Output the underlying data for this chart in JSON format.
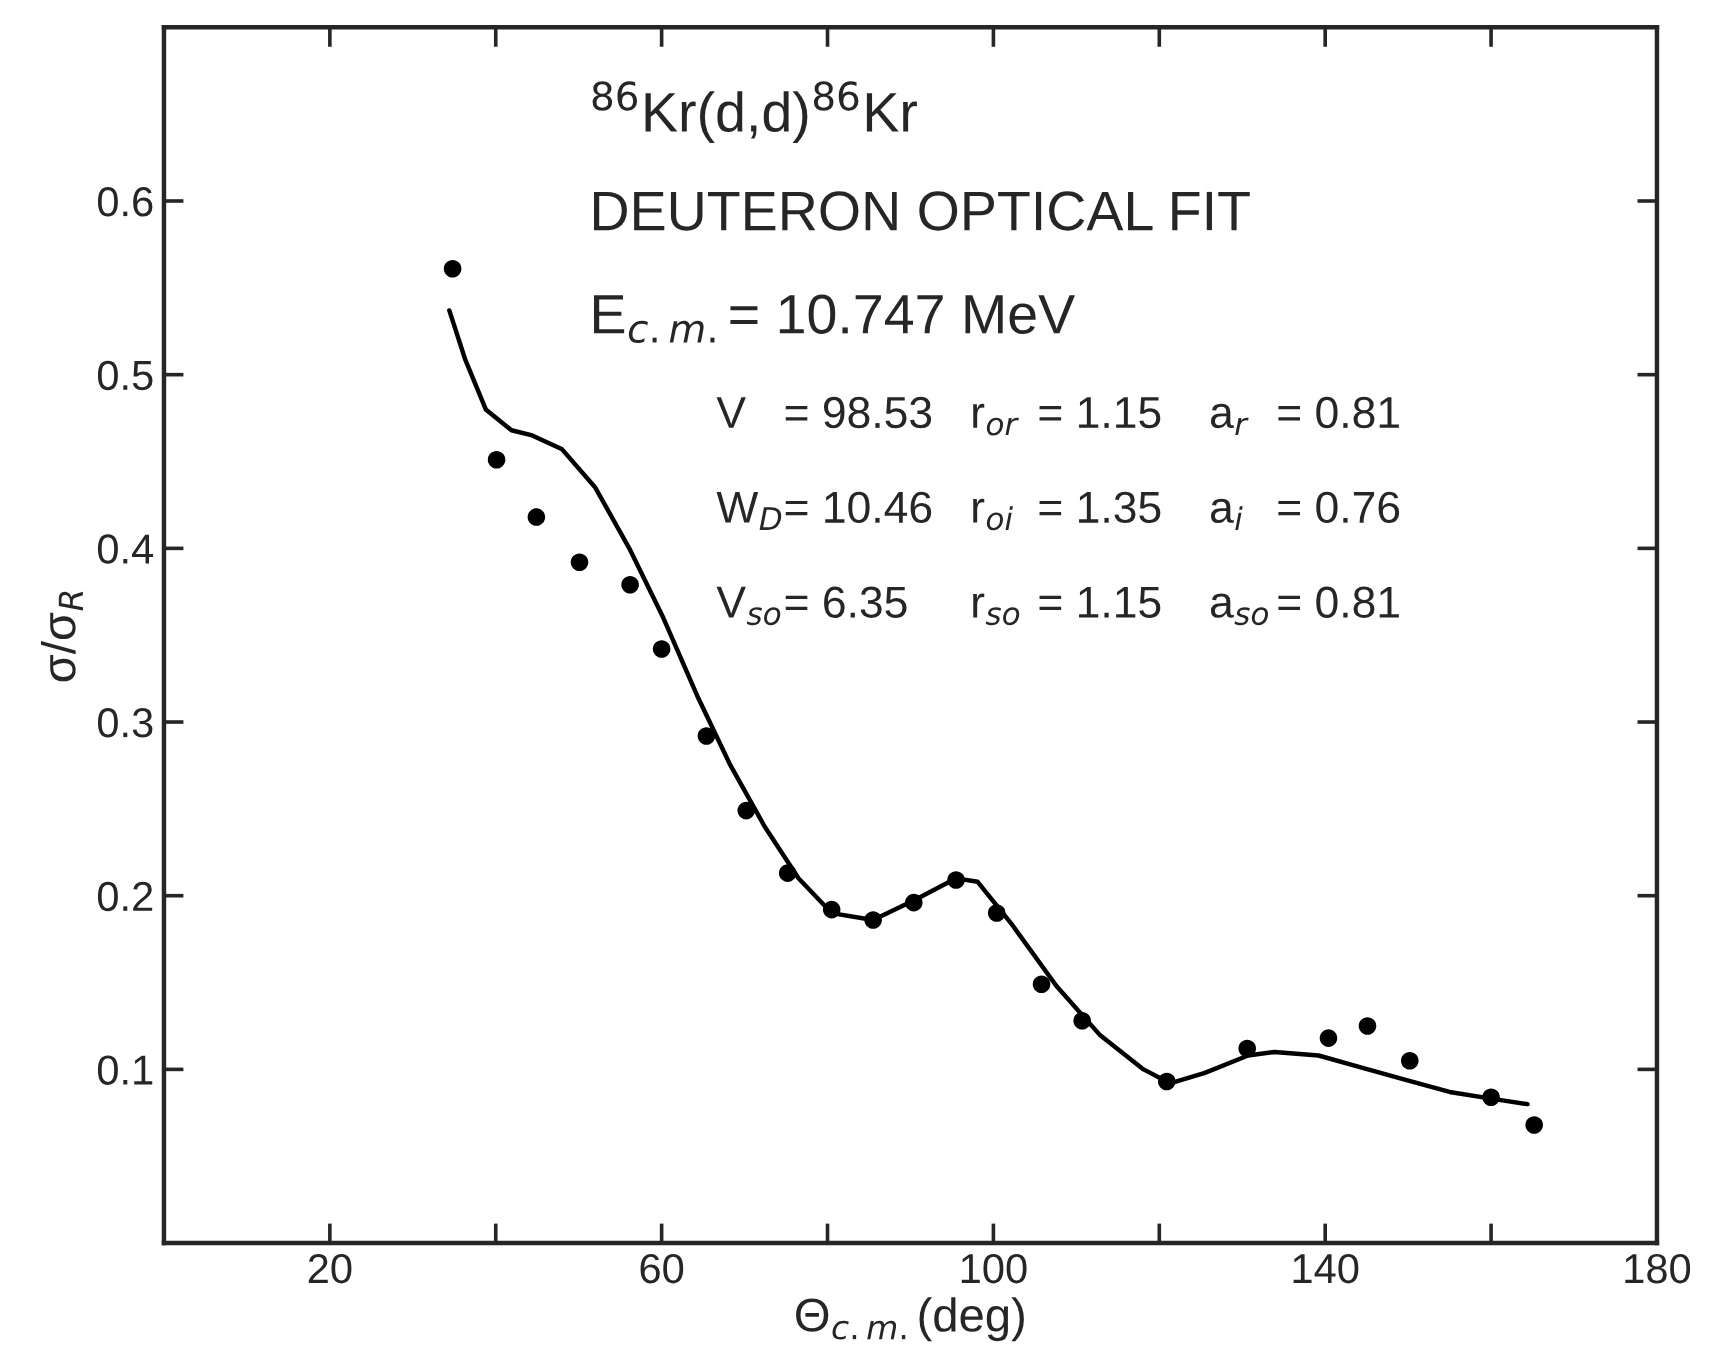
{
  "chart_data": {
    "type": "scatter",
    "xlabel": "Θ$_{c.m.}$(deg)",
    "ylabel": "σ/σ$_{R}$",
    "xlim": [
      0,
      180
    ],
    "ylim": [
      0,
      0.7
    ],
    "xticks": [
      20,
      {
        "value": 40,
        "label": null
      },
      60,
      {
        "value": 80,
        "label": null
      },
      100,
      {
        "value": 120,
        "label": null
      },
      140,
      {
        "value": 160,
        "label": null
      },
      180
    ],
    "yticks": [
      0.1,
      0.2,
      0.3,
      0.4,
      0.5,
      0.6
    ],
    "grid": false,
    "series": [
      {
        "color": "#000000",
        "marker": "circle",
        "x": [
          34.8,
          40.1,
          44.9,
          50.1,
          56.2,
          60.0,
          65.4,
          70.2,
          75.2,
          80.5,
          85.5,
          90.4,
          95.5,
          100.4,
          105.8,
          110.7,
          120.9,
          130.6,
          140.4,
          145.1,
          150.2,
          160.0,
          165.2
        ],
        "values": [
          0.561,
          0.451,
          0.418,
          0.392,
          0.379,
          0.342,
          0.292,
          0.249,
          0.213,
          0.192,
          0.186,
          0.196,
          0.209,
          0.19,
          0.149,
          0.128,
          0.093,
          0.112,
          0.118,
          0.125,
          0.105,
          0.084,
          0.068
        ]
      },
      {
        "type": "line",
        "color": "#000000",
        "marker": "none",
        "line_style": "solid",
        "x": [
          34.4,
          36.3,
          38.8,
          41.9,
          44.4,
          48.0,
          52.0,
          56.1,
          60.2,
          64.3,
          68.3,
          72.4,
          76.5,
          80.5,
          85.5,
          90.7,
          95.5,
          98.1,
          102.3,
          107.6,
          112.8,
          118.1,
          121.3,
          125.5,
          130.7,
          133.9,
          139.2,
          144.4,
          149.7,
          155.0,
          160.2,
          164.4
        ],
        "values": [
          0.537,
          0.509,
          0.48,
          0.468,
          0.465,
          0.457,
          0.435,
          0.4,
          0.36,
          0.315,
          0.275,
          0.24,
          0.21,
          0.19,
          0.186,
          0.198,
          0.21,
          0.208,
          0.183,
          0.148,
          0.12,
          0.1,
          0.092,
          0.098,
          0.108,
          0.11,
          0.108,
          0.101,
          0.094,
          0.087,
          0.083,
          0.08
        ]
      }
    ],
    "annotations": [
      "$^{86}$Kr(d,d)$^{86}$Kr",
      "DEUTERON OPTICAL FIT",
      "E$_{c.m.}$= 10.747 MeV",
      "V",
      "= 98.53",
      "r$_{or}$",
      "= 1.15",
      "a$_{r}$",
      "= 0.81",
      "W$_{D}$",
      "= 10.46",
      "r$_{oi}$",
      "= 1.35",
      "a$_{i}$",
      "= 0.76",
      "V$_{so}$",
      "= 6.35",
      "r$_{so}$",
      "= 1.15",
      "a$_{so}$",
      "= 0.81"
    ]
  }
}
